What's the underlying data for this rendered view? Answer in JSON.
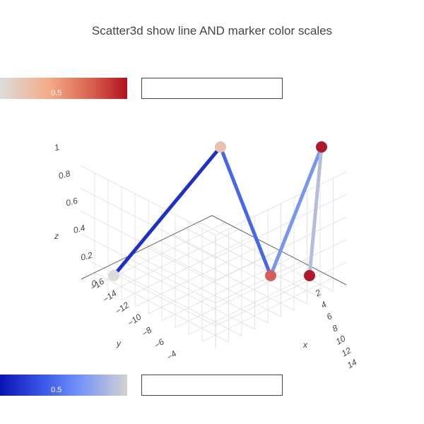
{
  "title": "Scatter3d show line AND marker color scales",
  "chart_data": {
    "type": "scatter3d",
    "title": "Scatter3d show line AND marker color scales",
    "mode": "lines+markers",
    "x": [
      0,
      5,
      10,
      15,
      20
    ],
    "y": [
      -10,
      -10,
      0,
      -5,
      -13
    ],
    "z": [
      0,
      1,
      0,
      1,
      0
    ],
    "marker_color_values": [
      0,
      0.25,
      0.75,
      1,
      1
    ],
    "line_color_values": [
      0,
      0.25,
      0.5,
      0.75,
      1
    ],
    "marker_colorscale": [
      "#dcdcdc",
      "#f5a882",
      "#b2182b"
    ],
    "line_colorscale": [
      "#0a14b4",
      "#5a82fa",
      "#d2d2d2"
    ],
    "axes": {
      "x": {
        "label": "x",
        "ticks": [
          "2",
          "4",
          "6",
          "8",
          "10",
          "12",
          "14"
        ]
      },
      "y": {
        "label": "y",
        "ticks": [
          "−16",
          "−14",
          "−12",
          "−10",
          "−8",
          "−6",
          "−4"
        ]
      },
      "z": {
        "label": "z",
        "ticks": [
          "0",
          "0.2",
          "0.4",
          "0.6",
          "0.8",
          "1"
        ]
      }
    },
    "grid": true,
    "colorbars": {
      "marker": {
        "tick_label": "0.5"
      },
      "line": {
        "tick_label": "0.5"
      }
    }
  }
}
